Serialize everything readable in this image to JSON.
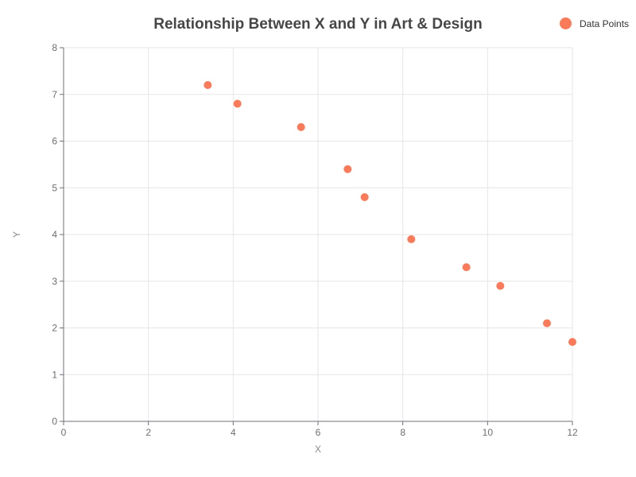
{
  "chart_data": {
    "type": "scatter",
    "title": "Relationship Between X and Y in Art & Design",
    "xlabel": "X",
    "ylabel": "Y",
    "xlim": [
      0,
      12
    ],
    "ylim": [
      0,
      8
    ],
    "xticks": [
      0,
      2,
      4,
      6,
      8,
      10,
      12
    ],
    "yticks": [
      0,
      1,
      2,
      3,
      4,
      5,
      6,
      7,
      8
    ],
    "grid": true,
    "legend_position": "top-right",
    "series": [
      {
        "name": "Data Points",
        "color": "#fa7a5a",
        "points": [
          {
            "x": 3.4,
            "y": 7.2
          },
          {
            "x": 4.1,
            "y": 6.8
          },
          {
            "x": 5.6,
            "y": 6.3
          },
          {
            "x": 6.7,
            "y": 5.4
          },
          {
            "x": 7.1,
            "y": 4.8
          },
          {
            "x": 8.2,
            "y": 3.9
          },
          {
            "x": 9.5,
            "y": 3.3
          },
          {
            "x": 10.3,
            "y": 2.9
          },
          {
            "x": 11.4,
            "y": 2.1
          },
          {
            "x": 12.0,
            "y": 1.7
          }
        ]
      }
    ]
  }
}
